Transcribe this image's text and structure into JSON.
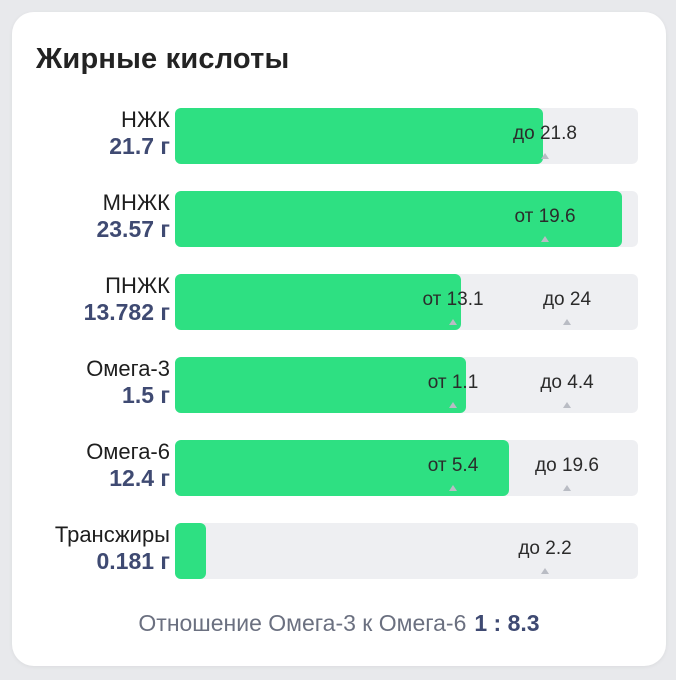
{
  "card": {
    "title": "Жирные кислоты"
  },
  "rows": [
    {
      "name": "НЖК",
      "amount": "21.7 г",
      "fill_fraction": 0.795,
      "markers": [
        {
          "text": "до 21.8",
          "position": 0.8
        }
      ]
    },
    {
      "name": "МНЖК",
      "amount": "23.57 г",
      "fill_fraction": 0.965,
      "markers": [
        {
          "text": "от 19.6",
          "position": 0.8
        }
      ]
    },
    {
      "name": "ПНЖК",
      "amount": "13.782 г",
      "fill_fraction": 0.617,
      "markers": [
        {
          "text": "от 13.1",
          "position": 0.6
        },
        {
          "text": "до 24",
          "position": 0.847
        }
      ]
    },
    {
      "name": "Омега-3",
      "amount": "1.5 г",
      "fill_fraction": 0.628,
      "markers": [
        {
          "text": "от 1.1",
          "position": 0.6
        },
        {
          "text": "до 4.4",
          "position": 0.847
        }
      ]
    },
    {
      "name": "Омега-6",
      "amount": "12.4 г",
      "fill_fraction": 0.722,
      "markers": [
        {
          "text": "от 5.4",
          "position": 0.6
        },
        {
          "text": "до 19.6",
          "position": 0.847
        }
      ]
    },
    {
      "name": "Трансжиры",
      "amount": "0.181 г",
      "fill_fraction": 0.067,
      "markers": [
        {
          "text": "до 2.2",
          "position": 0.8
        }
      ]
    }
  ],
  "ratio": {
    "label": "Отношение Омега-3 к Омега-6",
    "value": "1 : 8.3"
  },
  "colors": {
    "fill": "#2ee082",
    "track": "#eeeff2",
    "amount": "#3f4a72"
  }
}
